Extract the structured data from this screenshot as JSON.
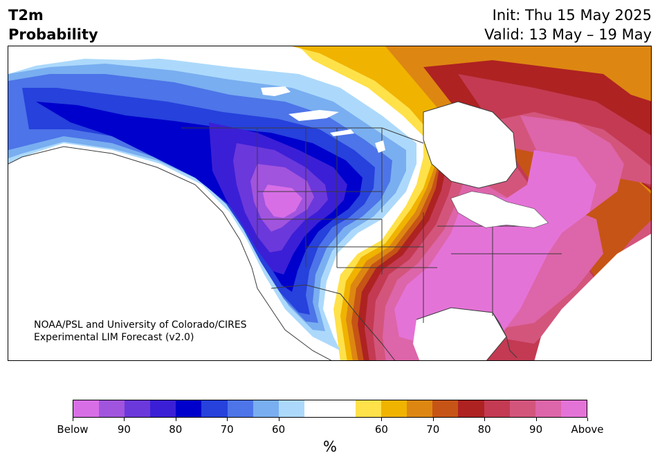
{
  "header": {
    "title_line1": "T2m",
    "title_line2": "Probability",
    "init_line": "Init: Thu 15 May 2025",
    "valid_line": "Valid: 13 May – 19 May"
  },
  "credit": {
    "line1": "NOAA/PSL and University of Colorado/CIRES",
    "line2": "Experimental LIM Forecast (v2.0)"
  },
  "colorbar": {
    "colors": [
      "#d86ee6",
      "#a154dd",
      "#6b38db",
      "#3b1fd6",
      "#0000cc",
      "#2641dc",
      "#4d74e8",
      "#79aef0",
      "#acd9fb",
      "#ffffff",
      "#ffffff",
      "#ffe14a",
      "#f0b300",
      "#dd8712",
      "#c65416",
      "#ae2222",
      "#c33a52",
      "#d3557c",
      "#dd65a9",
      "#e473d7"
    ],
    "tick_labels": [
      "Below",
      "90",
      "80",
      "70",
      "60",
      "60",
      "70",
      "80",
      "90",
      "Above"
    ],
    "unit_label": "%"
  },
  "map": {
    "colors": {
      "above_far": "#e473d7",
      "above_90": "#dd65a9",
      "above_85": "#d3557c",
      "above_80": "#c33a52",
      "above_75": "#ae2222",
      "above_70": "#c65416",
      "above_65": "#dd8712",
      "above_60": "#f0b300",
      "above_55": "#ffe14a",
      "below_55": "#acd9fb",
      "below_60": "#79aef0",
      "below_65": "#4d74e8",
      "below_70": "#2641dc",
      "below_75": "#0000cc",
      "below_80": "#3b1fd6",
      "below_85": "#6b38db",
      "below_90": "#a154dd",
      "below_far": "#d86ee6",
      "neutral": "#ffffff",
      "border": "#3a3a3a"
    }
  }
}
